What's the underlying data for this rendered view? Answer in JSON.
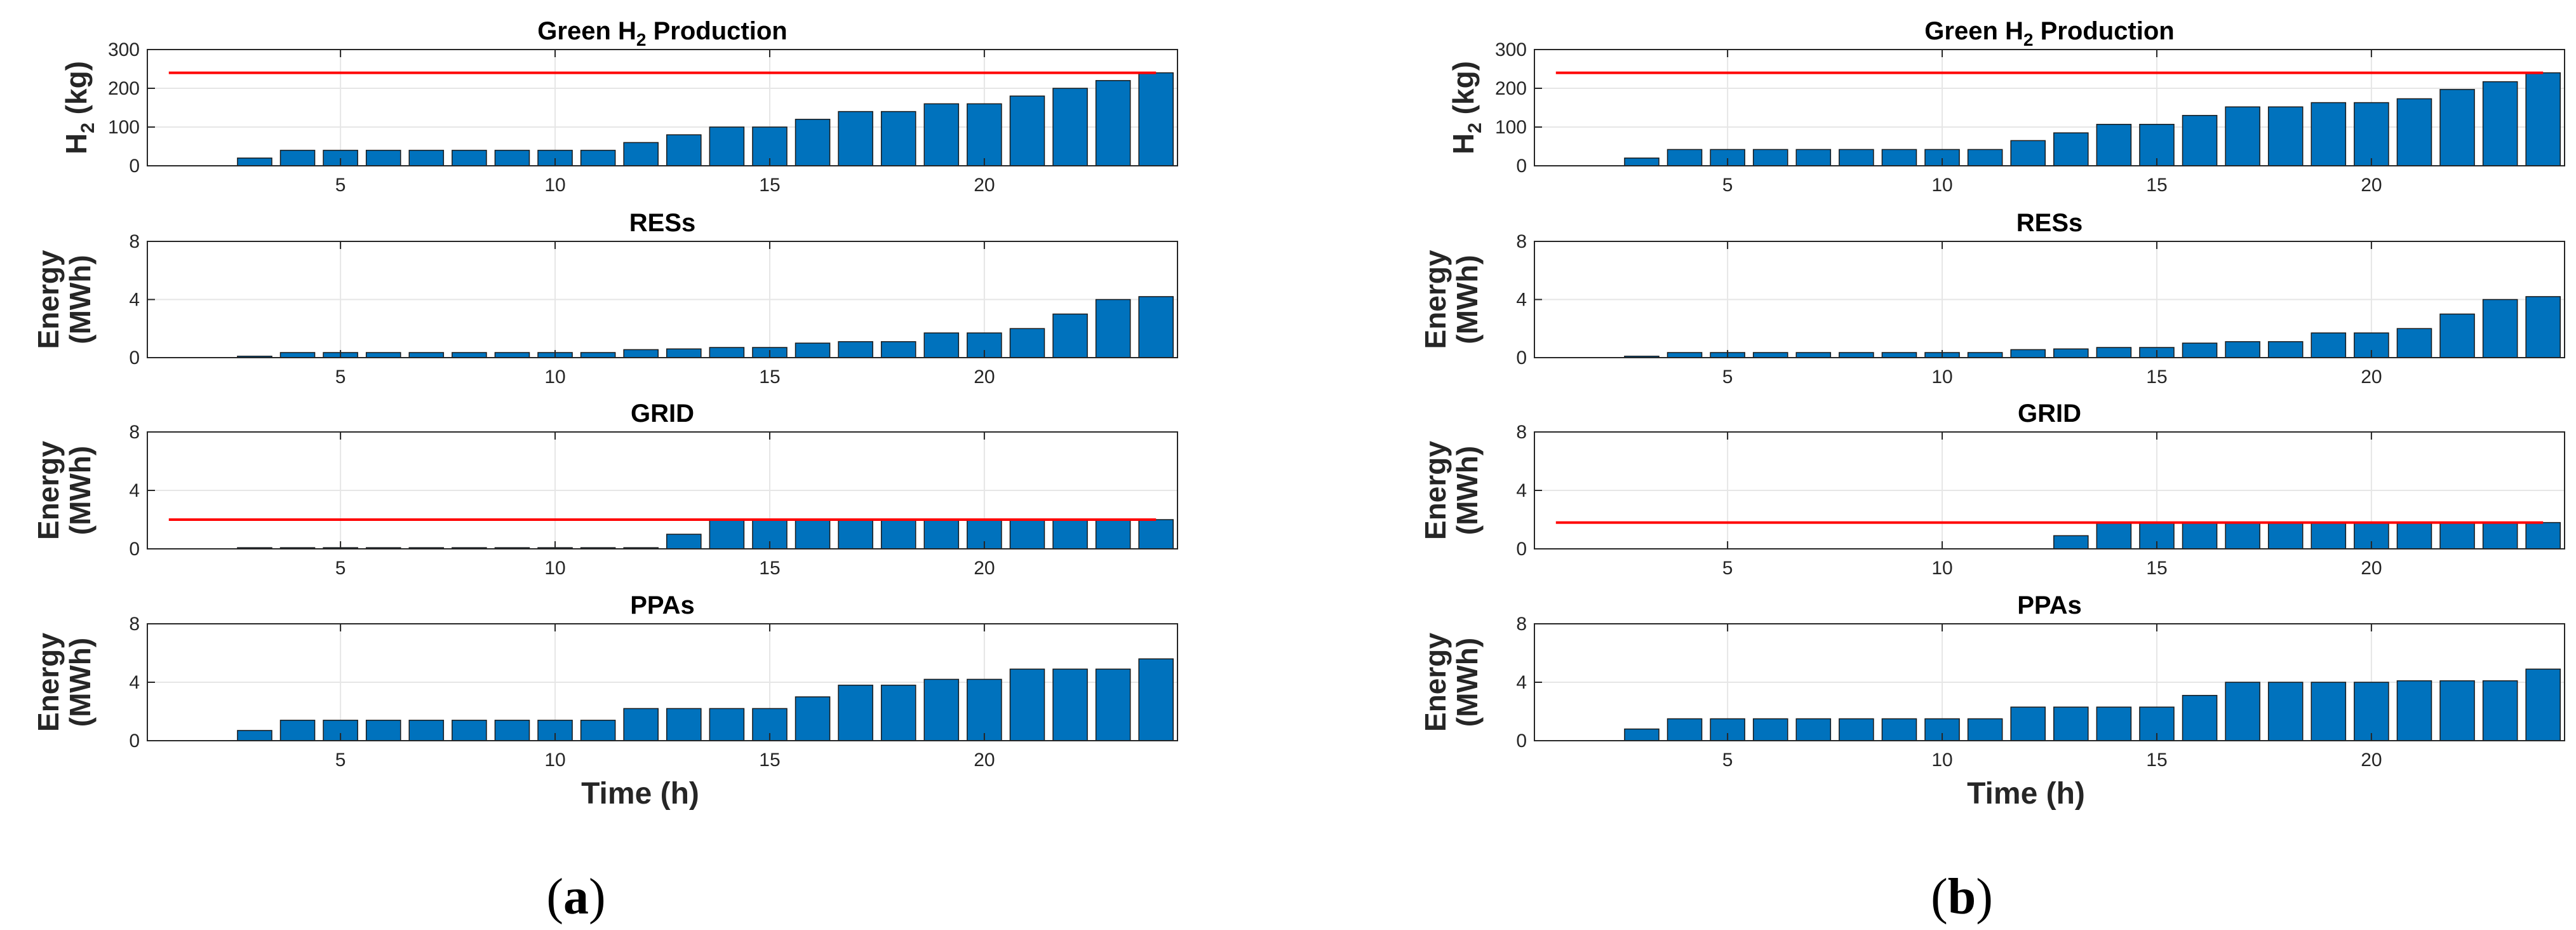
{
  "figure": {
    "panels": [
      {
        "id": "a",
        "label_open": "(",
        "label_letter": "a",
        "label_close": ")",
        "xlabel": "Time (h)"
      },
      {
        "id": "b",
        "label_open": "(",
        "label_letter": "b",
        "label_close": ")",
        "xlabel": "Time (h)"
      }
    ]
  },
  "colors": {
    "bar": "#0072BD",
    "bar_edge": "#1a1a1a",
    "limit_line": "#FF0000",
    "grid": "#e6e6e6",
    "axis": "#262626"
  },
  "chart_data": [
    {
      "panel": "a",
      "subplot": 1,
      "type": "bar",
      "title": "Green H2 Production",
      "title_main": "Green H",
      "title_sub": "2",
      "title_rest": " Production",
      "ylabel": "H2 (kg)",
      "ylabel_main": "H",
      "ylabel_sub": "2",
      "ylabel_rest": " (kg)",
      "x": [
        1,
        2,
        3,
        4,
        5,
        6,
        7,
        8,
        9,
        10,
        11,
        12,
        13,
        14,
        15,
        16,
        17,
        18,
        19,
        20,
        21,
        22,
        23,
        24
      ],
      "values": [
        0,
        0,
        20,
        40,
        40,
        40,
        40,
        40,
        40,
        40,
        40,
        60,
        80,
        100,
        100,
        120,
        140,
        140,
        160,
        160,
        180,
        200,
        220,
        240
      ],
      "xlim": [
        0.5,
        24.5
      ],
      "ylim": [
        0,
        300
      ],
      "xticks": [
        5,
        10,
        15,
        20
      ],
      "yticks": [
        0,
        100,
        200,
        300
      ],
      "hline": 240,
      "hline_xrange": [
        1,
        24
      ],
      "grid": true
    },
    {
      "panel": "a",
      "subplot": 2,
      "type": "bar",
      "title": "RESs",
      "ylabel": "Energy (MWh)",
      "ylabel_line1": "Energy",
      "ylabel_line2": "(MWh)",
      "x": [
        1,
        2,
        3,
        4,
        5,
        6,
        7,
        8,
        9,
        10,
        11,
        12,
        13,
        14,
        15,
        16,
        17,
        18,
        19,
        20,
        21,
        22,
        23,
        24
      ],
      "values": [
        0,
        0,
        0.1,
        0.35,
        0.35,
        0.35,
        0.35,
        0.35,
        0.35,
        0.35,
        0.35,
        0.55,
        0.6,
        0.7,
        0.7,
        1.0,
        1.1,
        1.1,
        1.7,
        1.7,
        2.0,
        3.0,
        4.0,
        4.2
      ],
      "xlim": [
        0.5,
        24.5
      ],
      "ylim": [
        0,
        8
      ],
      "xticks": [
        5,
        10,
        15,
        20
      ],
      "yticks": [
        0,
        4,
        8
      ],
      "grid": true
    },
    {
      "panel": "a",
      "subplot": 3,
      "type": "bar",
      "title": "GRID",
      "ylabel": "Energy (MWh)",
      "ylabel_line1": "Energy",
      "ylabel_line2": "(MWh)",
      "x": [
        1,
        2,
        3,
        4,
        5,
        6,
        7,
        8,
        9,
        10,
        11,
        12,
        13,
        14,
        15,
        16,
        17,
        18,
        19,
        20,
        21,
        22,
        23,
        24
      ],
      "values": [
        0,
        0,
        0.08,
        0.08,
        0.08,
        0.08,
        0.08,
        0.08,
        0.08,
        0.08,
        0.08,
        0.08,
        1.0,
        2.0,
        2.0,
        2.0,
        2.0,
        2.0,
        2.0,
        2.0,
        2.0,
        2.0,
        2.0,
        2.0
      ],
      "xlim": [
        0.5,
        24.5
      ],
      "ylim": [
        0,
        8
      ],
      "xticks": [
        5,
        10,
        15,
        20
      ],
      "yticks": [
        0,
        4,
        8
      ],
      "hline": 2,
      "hline_xrange": [
        1,
        24
      ],
      "grid": true
    },
    {
      "panel": "a",
      "subplot": 4,
      "type": "bar",
      "title": "PPAs",
      "ylabel": "Energy (MWh)",
      "ylabel_line1": "Energy",
      "ylabel_line2": "(MWh)",
      "xlabel": "Time (h)",
      "x": [
        1,
        2,
        3,
        4,
        5,
        6,
        7,
        8,
        9,
        10,
        11,
        12,
        13,
        14,
        15,
        16,
        17,
        18,
        19,
        20,
        21,
        22,
        23,
        24
      ],
      "values": [
        0,
        0,
        0.7,
        1.4,
        1.4,
        1.4,
        1.4,
        1.4,
        1.4,
        1.4,
        1.4,
        2.2,
        2.2,
        2.2,
        2.2,
        3.0,
        3.8,
        3.8,
        4.2,
        4.2,
        4.9,
        4.9,
        4.9,
        5.6
      ],
      "xlim": [
        0.5,
        24.5
      ],
      "ylim": [
        0,
        8
      ],
      "xticks": [
        5,
        10,
        15,
        20
      ],
      "yticks": [
        0,
        4,
        8
      ],
      "grid": true
    },
    {
      "panel": "b",
      "subplot": 1,
      "type": "bar",
      "title": "Green H2 Production",
      "title_main": "Green H",
      "title_sub": "2",
      "title_rest": " Production",
      "ylabel": "H2 (kg)",
      "ylabel_main": "H",
      "ylabel_sub": "2",
      "ylabel_rest": " (kg)",
      "x": [
        1,
        2,
        3,
        4,
        5,
        6,
        7,
        8,
        9,
        10,
        11,
        12,
        13,
        14,
        15,
        16,
        17,
        18,
        19,
        20,
        21,
        22,
        23,
        24
      ],
      "values": [
        0,
        0,
        20,
        42,
        42,
        42,
        42,
        42,
        42,
        42,
        42,
        65,
        85,
        107,
        107,
        130,
        152,
        152,
        163,
        163,
        173,
        197,
        217,
        240
      ],
      "xlim": [
        0.5,
        24.5
      ],
      "ylim": [
        0,
        300
      ],
      "xticks": [
        5,
        10,
        15,
        20
      ],
      "yticks": [
        0,
        100,
        200,
        300
      ],
      "hline": 240,
      "hline_xrange": [
        1,
        24
      ],
      "grid": true
    },
    {
      "panel": "b",
      "subplot": 2,
      "type": "bar",
      "title": "RESs",
      "ylabel": "Energy (MWh)",
      "ylabel_line1": "Energy",
      "ylabel_line2": "(MWh)",
      "x": [
        1,
        2,
        3,
        4,
        5,
        6,
        7,
        8,
        9,
        10,
        11,
        12,
        13,
        14,
        15,
        16,
        17,
        18,
        19,
        20,
        21,
        22,
        23,
        24
      ],
      "values": [
        0,
        0,
        0.1,
        0.35,
        0.35,
        0.35,
        0.35,
        0.35,
        0.35,
        0.35,
        0.35,
        0.55,
        0.6,
        0.7,
        0.7,
        1.0,
        1.1,
        1.1,
        1.7,
        1.7,
        2.0,
        3.0,
        4.0,
        4.2
      ],
      "xlim": [
        0.5,
        24.5
      ],
      "ylim": [
        0,
        8
      ],
      "xticks": [
        5,
        10,
        15,
        20
      ],
      "yticks": [
        0,
        4,
        8
      ],
      "grid": true
    },
    {
      "panel": "b",
      "subplot": 3,
      "type": "bar",
      "title": "GRID",
      "ylabel": "Energy (MWh)",
      "ylabel_line1": "Energy",
      "ylabel_line2": "(MWh)",
      "x": [
        1,
        2,
        3,
        4,
        5,
        6,
        7,
        8,
        9,
        10,
        11,
        12,
        13,
        14,
        15,
        16,
        17,
        18,
        19,
        20,
        21,
        22,
        23,
        24
      ],
      "values": [
        0,
        0,
        0,
        0,
        0,
        0,
        0,
        0,
        0,
        0,
        0,
        0,
        0.9,
        1.8,
        1.8,
        1.8,
        1.8,
        1.8,
        1.8,
        1.8,
        1.8,
        1.8,
        1.8,
        1.8
      ],
      "xlim": [
        0.5,
        24.5
      ],
      "ylim": [
        0,
        8
      ],
      "xticks": [
        5,
        10,
        15,
        20
      ],
      "yticks": [
        0,
        4,
        8
      ],
      "hline": 1.8,
      "hline_xrange": [
        1,
        24
      ],
      "grid": true
    },
    {
      "panel": "b",
      "subplot": 4,
      "type": "bar",
      "title": "PPAs",
      "ylabel": "Energy (MWh)",
      "ylabel_line1": "Energy",
      "ylabel_line2": "(MWh)",
      "xlabel": "Time (h)",
      "x": [
        1,
        2,
        3,
        4,
        5,
        6,
        7,
        8,
        9,
        10,
        11,
        12,
        13,
        14,
        15,
        16,
        17,
        18,
        19,
        20,
        21,
        22,
        23,
        24
      ],
      "values": [
        0,
        0,
        0.8,
        1.5,
        1.5,
        1.5,
        1.5,
        1.5,
        1.5,
        1.5,
        1.5,
        2.3,
        2.3,
        2.3,
        2.3,
        3.1,
        4.0,
        4.0,
        4.0,
        4.0,
        4.1,
        4.1,
        4.1,
        4.9
      ],
      "xlim": [
        0.5,
        24.5
      ],
      "ylim": [
        0,
        8
      ],
      "xticks": [
        5,
        10,
        15,
        20
      ],
      "yticks": [
        0,
        4,
        8
      ],
      "grid": true
    }
  ]
}
